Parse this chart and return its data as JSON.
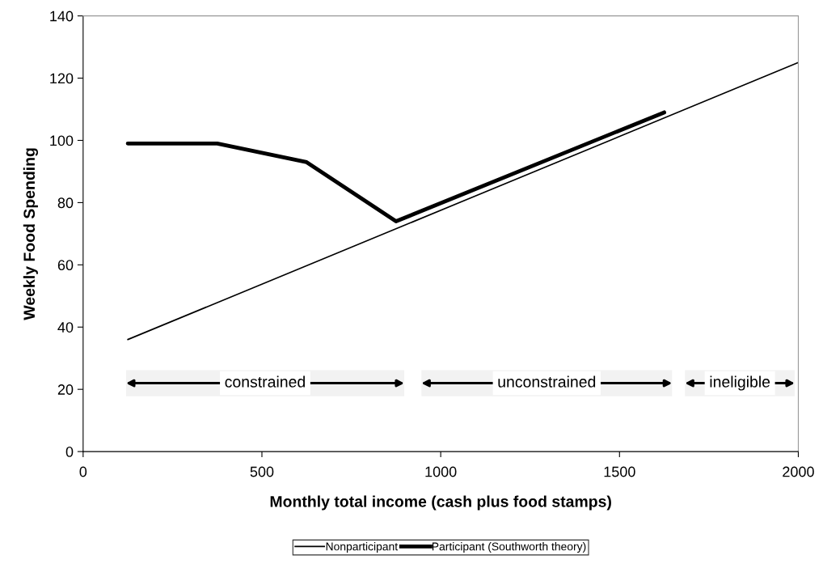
{
  "chart_data": {
    "type": "line",
    "xlabel": "Monthly total income (cash plus food stamps)",
    "ylabel": "Weekly Food Spending",
    "xlim": [
      0,
      2000
    ],
    "xticks": [
      0,
      500,
      1000,
      1500,
      2000
    ],
    "ylim": [
      0,
      140
    ],
    "yticks": [
      0,
      20,
      40,
      60,
      80,
      100,
      120,
      140
    ],
    "series": [
      {
        "name": "Nonparticipant",
        "color": "#000000",
        "x": [
          125,
          2000
        ],
        "values": [
          36,
          125
        ]
      },
      {
        "name": "Participant (Southworth theory)",
        "color": "#000000",
        "x": [
          125,
          375,
          625,
          875,
          1625
        ],
        "values": [
          99,
          99,
          93,
          74,
          109
        ]
      }
    ],
    "bands": [
      {
        "axis": "x",
        "from": 120,
        "to": 898,
        "label": "constrained"
      },
      {
        "axis": "x",
        "from": 946,
        "to": 1647,
        "label": "unconstrained"
      },
      {
        "axis": "x",
        "from": 1683,
        "to": 1990,
        "label": "ineligible"
      }
    ],
    "grid": false,
    "legend": "bottom",
    "marker": "none",
    "line_style": "solid"
  }
}
